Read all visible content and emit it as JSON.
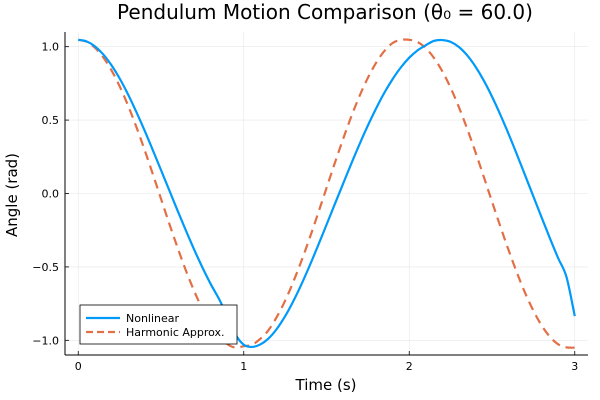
{
  "chart_data": {
    "type": "line",
    "title": "Pendulum Motion Comparison (θ₀ = 60.0)",
    "xlabel": "Time (s)",
    "ylabel": "Angle (rad)",
    "xlim": [
      -0.08,
      3.08
    ],
    "ylim": [
      -1.1,
      1.1
    ],
    "grid": true,
    "legend_position": "bottom-left",
    "x_ticks": [
      {
        "value": 0,
        "label": "0"
      },
      {
        "value": 1,
        "label": "1"
      },
      {
        "value": 2,
        "label": "2"
      },
      {
        "value": 3,
        "label": "3"
      }
    ],
    "y_ticks": [
      {
        "value": -1.0,
        "label": "−1.0"
      },
      {
        "value": -0.5,
        "label": "−0.5"
      },
      {
        "value": 0.0,
        "label": "0.0"
      },
      {
        "value": 0.5,
        "label": "0.5"
      },
      {
        "value": 1.0,
        "label": "1.0"
      }
    ],
    "series": [
      {
        "name": "Nonlinear",
        "color": "#009AFA",
        "dash": "solid",
        "x": [
          0.0,
          0.05,
          0.1,
          0.15,
          0.2,
          0.25,
          0.3,
          0.35,
          0.4,
          0.45,
          0.5,
          0.55,
          0.6,
          0.65,
          0.7,
          0.75,
          0.8,
          0.85,
          0.9,
          0.95,
          1.0,
          1.05,
          1.1,
          1.15,
          1.2,
          1.25,
          1.3,
          1.35,
          1.4,
          1.45,
          1.5,
          1.55,
          1.6,
          1.65,
          1.7,
          1.75,
          1.8,
          1.85,
          1.9,
          1.95,
          2.0,
          2.05,
          2.1,
          2.15,
          2.2,
          2.25,
          2.3,
          2.35,
          2.4,
          2.45,
          2.5,
          2.55,
          2.6,
          2.65,
          2.7,
          2.75,
          2.8,
          2.85,
          2.9,
          2.95,
          3.0
        ],
        "y": [
          1.047,
          1.036,
          1.003,
          0.949,
          0.875,
          0.784,
          0.677,
          0.558,
          0.431,
          0.297,
          0.16,
          0.022,
          -0.116,
          -0.251,
          -0.381,
          -0.503,
          -0.616,
          -0.717,
          -0.834,
          -0.96,
          -1.03,
          -1.045,
          -1.028,
          -0.987,
          -0.922,
          -0.836,
          -0.732,
          -0.615,
          -0.487,
          -0.352,
          -0.213,
          -0.073,
          0.066,
          0.204,
          0.337,
          0.463,
          0.58,
          0.687,
          0.78,
          0.86,
          0.925,
          0.975,
          1.01,
          1.04,
          1.045,
          1.033,
          0.998,
          0.941,
          0.864,
          0.77,
          0.66,
          0.538,
          0.406,
          0.267,
          0.124,
          -0.02,
          -0.164,
          -0.305,
          -0.441,
          -0.568,
          -0.835
        ]
      },
      {
        "name": "Harmonic Approx.",
        "color": "#E26F46",
        "dash": "dashed",
        "x": [
          0.0,
          0.05,
          0.1,
          0.15,
          0.2,
          0.25,
          0.3,
          0.35,
          0.4,
          0.45,
          0.5,
          0.55,
          0.6,
          0.65,
          0.7,
          0.75,
          0.8,
          0.85,
          0.9,
          0.95,
          1.0,
          1.05,
          1.1,
          1.15,
          1.2,
          1.25,
          1.3,
          1.35,
          1.4,
          1.45,
          1.5,
          1.55,
          1.6,
          1.65,
          1.7,
          1.75,
          1.8,
          1.85,
          1.9,
          1.95,
          2.0,
          2.05,
          2.1,
          2.15,
          2.2,
          2.25,
          2.3,
          2.35,
          2.4,
          2.45,
          2.5,
          2.55,
          2.6,
          2.65,
          2.7,
          2.75,
          2.8,
          2.85,
          2.9,
          2.95,
          3.0
        ],
        "y": [
          1.047,
          1.034,
          0.994,
          0.929,
          0.841,
          0.731,
          0.602,
          0.457,
          0.3,
          0.134,
          -0.036,
          -0.205,
          -0.368,
          -0.523,
          -0.663,
          -0.787,
          -0.89,
          -0.97,
          -1.025,
          -1.05,
          -1.04,
          -1.03,
          -0.99,
          -0.93,
          -0.84,
          -0.73,
          -0.6,
          -0.455,
          -0.298,
          -0.132,
          0.037,
          0.207,
          0.37,
          0.525,
          0.665,
          0.788,
          0.891,
          0.971,
          1.025,
          1.046,
          1.047,
          1.032,
          0.99,
          0.922,
          0.832,
          0.72,
          0.588,
          0.441,
          0.282,
          0.115,
          -0.055,
          -0.223,
          -0.385,
          -0.538,
          -0.677,
          -0.798,
          -0.899,
          -0.976,
          -1.027,
          -1.048,
          -1.05
        ]
      }
    ]
  }
}
